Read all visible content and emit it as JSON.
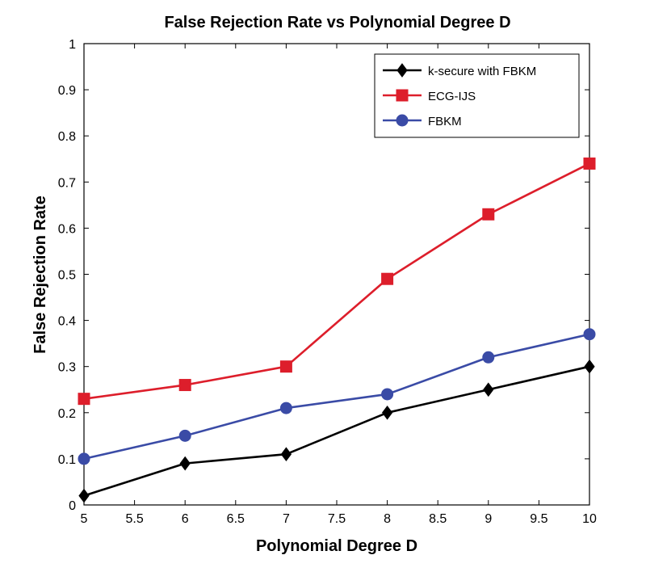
{
  "chart_data": {
    "type": "line",
    "title": "False Rejection Rate vs Polynomial Degree D",
    "xlabel": "Polynomial Degree D",
    "ylabel": "False Rejection Rate",
    "xlim": [
      5,
      10
    ],
    "ylim": [
      0,
      1
    ],
    "x_ticks": [
      5,
      5.5,
      6,
      6.5,
      7,
      7.5,
      8,
      8.5,
      9,
      9.5,
      10
    ],
    "x_tick_labels": [
      "5",
      "5.5",
      "6",
      "6.5",
      "7",
      "7.5",
      "8",
      "8.5",
      "9",
      "9.5",
      "10"
    ],
    "y_ticks": [
      0,
      0.1,
      0.2,
      0.3,
      0.4,
      0.5,
      0.6,
      0.7,
      0.8,
      0.9,
      1
    ],
    "y_tick_labels": [
      "0",
      "0.1",
      "0.2",
      "0.3",
      "0.4",
      "0.5",
      "0.6",
      "0.7",
      "0.8",
      "0.9",
      "1"
    ],
    "grid": false,
    "legend_position": "top-right",
    "x": [
      5,
      6,
      7,
      8,
      9,
      10
    ],
    "series": [
      {
        "name": "k-secure with FBKM",
        "color": "#000000",
        "marker": "diamond",
        "values": [
          0.02,
          0.09,
          0.11,
          0.2,
          0.25,
          0.3
        ]
      },
      {
        "name": "ECG-IJS",
        "color": "#dd1e2b",
        "marker": "square",
        "values": [
          0.23,
          0.26,
          0.3,
          0.49,
          0.63,
          0.74
        ]
      },
      {
        "name": "FBKM",
        "color": "#3a4ba6",
        "marker": "circle",
        "values": [
          0.1,
          0.15,
          0.21,
          0.24,
          0.32,
          0.37
        ]
      }
    ]
  }
}
